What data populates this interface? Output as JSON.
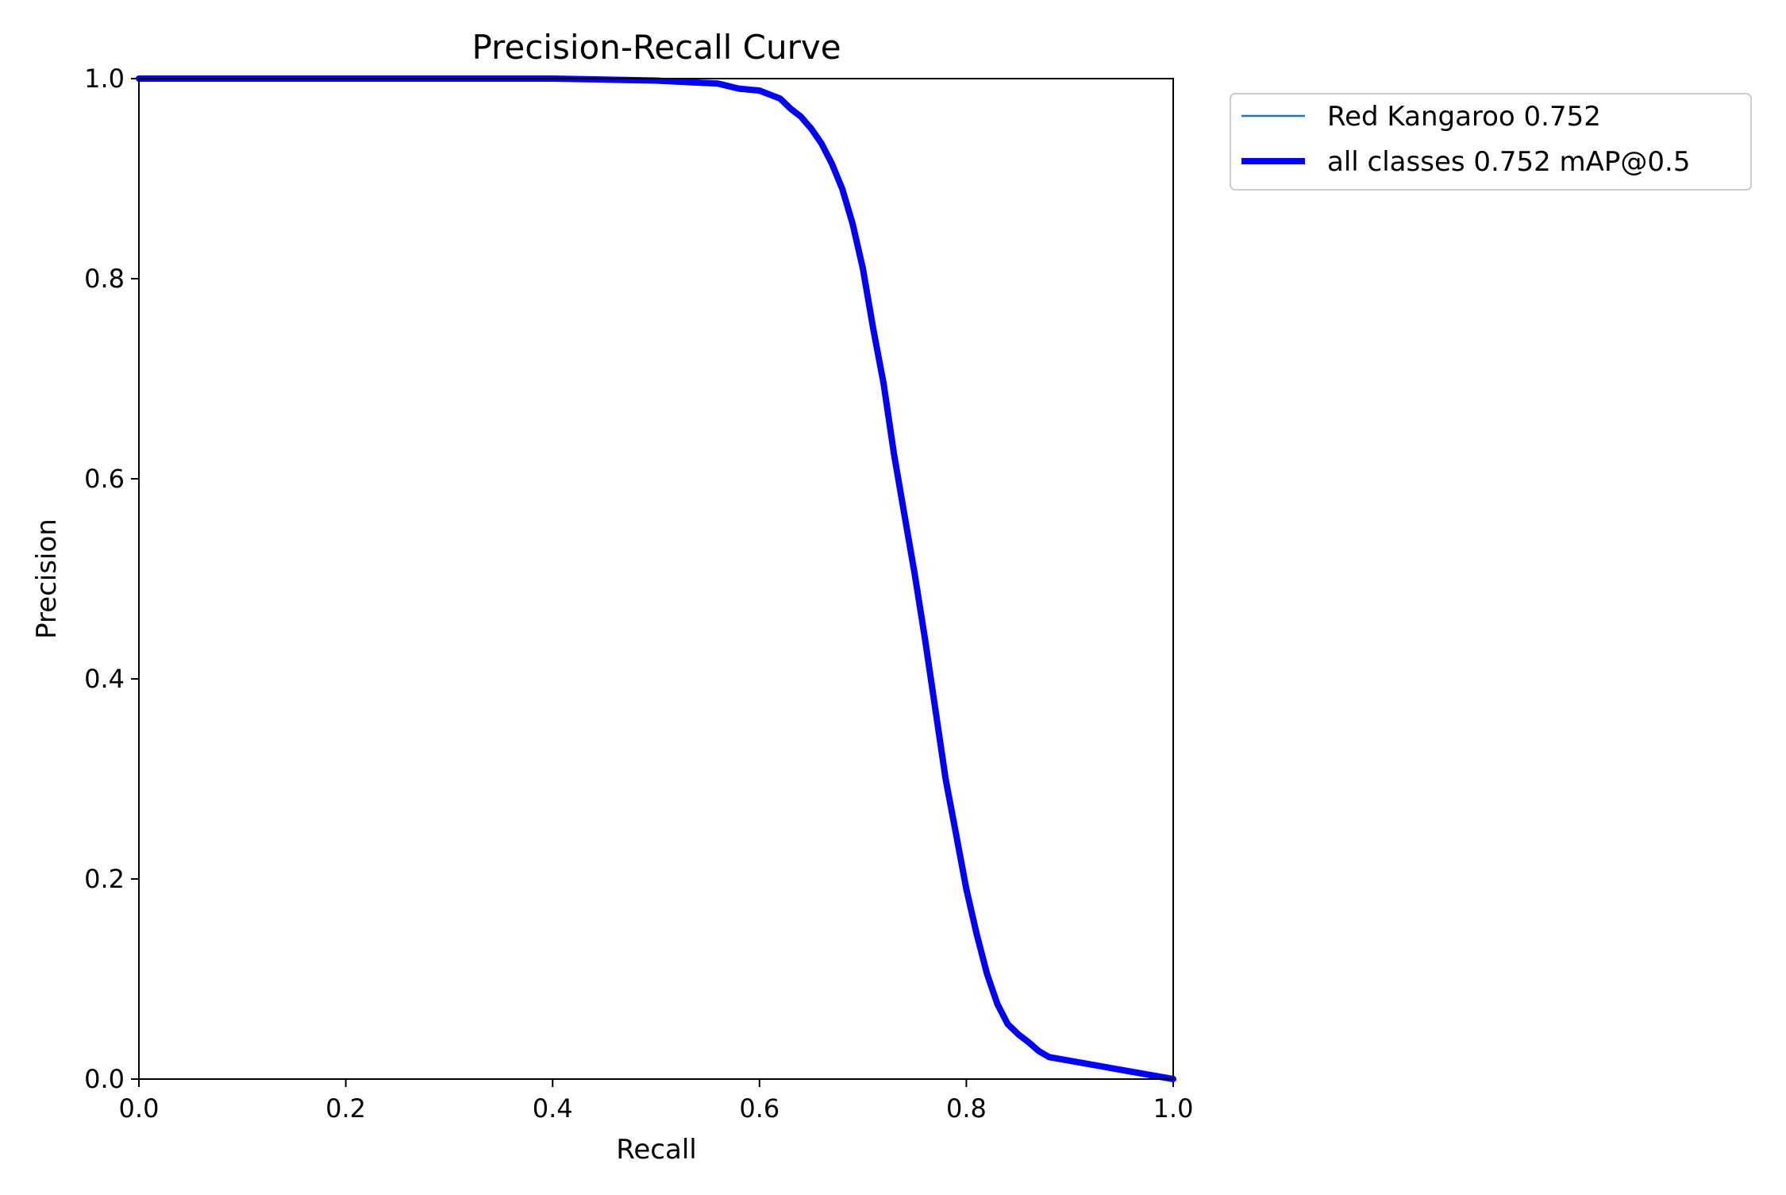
{
  "chart_data": {
    "type": "line",
    "title": "Precision-Recall Curve",
    "xlabel": "Recall",
    "ylabel": "Precision",
    "xlim": [
      0.0,
      1.0
    ],
    "ylim": [
      0.0,
      1.0
    ],
    "xticks": [
      "0.0",
      "0.2",
      "0.4",
      "0.6",
      "0.8",
      "1.0"
    ],
    "yticks": [
      "0.0",
      "0.2",
      "0.4",
      "0.6",
      "0.8",
      "1.0"
    ],
    "grid": false,
    "legend_position": "outside top-right",
    "series": [
      {
        "name": "Red Kangaroo 0.752",
        "color": "#1f77b4",
        "points": [
          [
            0.0,
            1.0
          ],
          [
            0.4,
            1.0
          ],
          [
            0.5,
            0.998
          ],
          [
            0.56,
            0.995
          ],
          [
            0.58,
            0.99
          ],
          [
            0.6,
            0.988
          ],
          [
            0.62,
            0.98
          ],
          [
            0.63,
            0.97
          ],
          [
            0.64,
            0.962
          ],
          [
            0.65,
            0.95
          ],
          [
            0.66,
            0.935
          ],
          [
            0.67,
            0.915
          ],
          [
            0.68,
            0.89
          ],
          [
            0.69,
            0.855
          ],
          [
            0.7,
            0.81
          ],
          [
            0.71,
            0.75
          ],
          [
            0.72,
            0.695
          ],
          [
            0.73,
            0.625
          ],
          [
            0.74,
            0.565
          ],
          [
            0.75,
            0.505
          ],
          [
            0.76,
            0.44
          ],
          [
            0.77,
            0.37
          ],
          [
            0.78,
            0.3
          ],
          [
            0.79,
            0.245
          ],
          [
            0.8,
            0.19
          ],
          [
            0.81,
            0.145
          ],
          [
            0.82,
            0.105
          ],
          [
            0.83,
            0.075
          ],
          [
            0.84,
            0.055
          ],
          [
            0.85,
            0.045
          ],
          [
            0.86,
            0.037
          ],
          [
            0.87,
            0.028
          ],
          [
            0.88,
            0.022
          ],
          [
            1.0,
            0.0
          ]
        ]
      },
      {
        "name": "all classes 0.752 mAP@0.5",
        "color": "#0000ff",
        "points": [
          [
            0.0,
            1.0
          ],
          [
            0.4,
            1.0
          ],
          [
            0.5,
            0.998
          ],
          [
            0.56,
            0.995
          ],
          [
            0.58,
            0.99
          ],
          [
            0.6,
            0.988
          ],
          [
            0.62,
            0.98
          ],
          [
            0.63,
            0.97
          ],
          [
            0.64,
            0.962
          ],
          [
            0.65,
            0.95
          ],
          [
            0.66,
            0.935
          ],
          [
            0.67,
            0.915
          ],
          [
            0.68,
            0.89
          ],
          [
            0.69,
            0.855
          ],
          [
            0.7,
            0.81
          ],
          [
            0.71,
            0.75
          ],
          [
            0.72,
            0.695
          ],
          [
            0.73,
            0.625
          ],
          [
            0.74,
            0.565
          ],
          [
            0.75,
            0.505
          ],
          [
            0.76,
            0.44
          ],
          [
            0.77,
            0.37
          ],
          [
            0.78,
            0.3
          ],
          [
            0.79,
            0.245
          ],
          [
            0.8,
            0.19
          ],
          [
            0.81,
            0.145
          ],
          [
            0.82,
            0.105
          ],
          [
            0.83,
            0.075
          ],
          [
            0.84,
            0.055
          ],
          [
            0.85,
            0.045
          ],
          [
            0.86,
            0.037
          ],
          [
            0.87,
            0.028
          ],
          [
            0.88,
            0.022
          ],
          [
            1.0,
            0.0
          ]
        ]
      }
    ]
  }
}
